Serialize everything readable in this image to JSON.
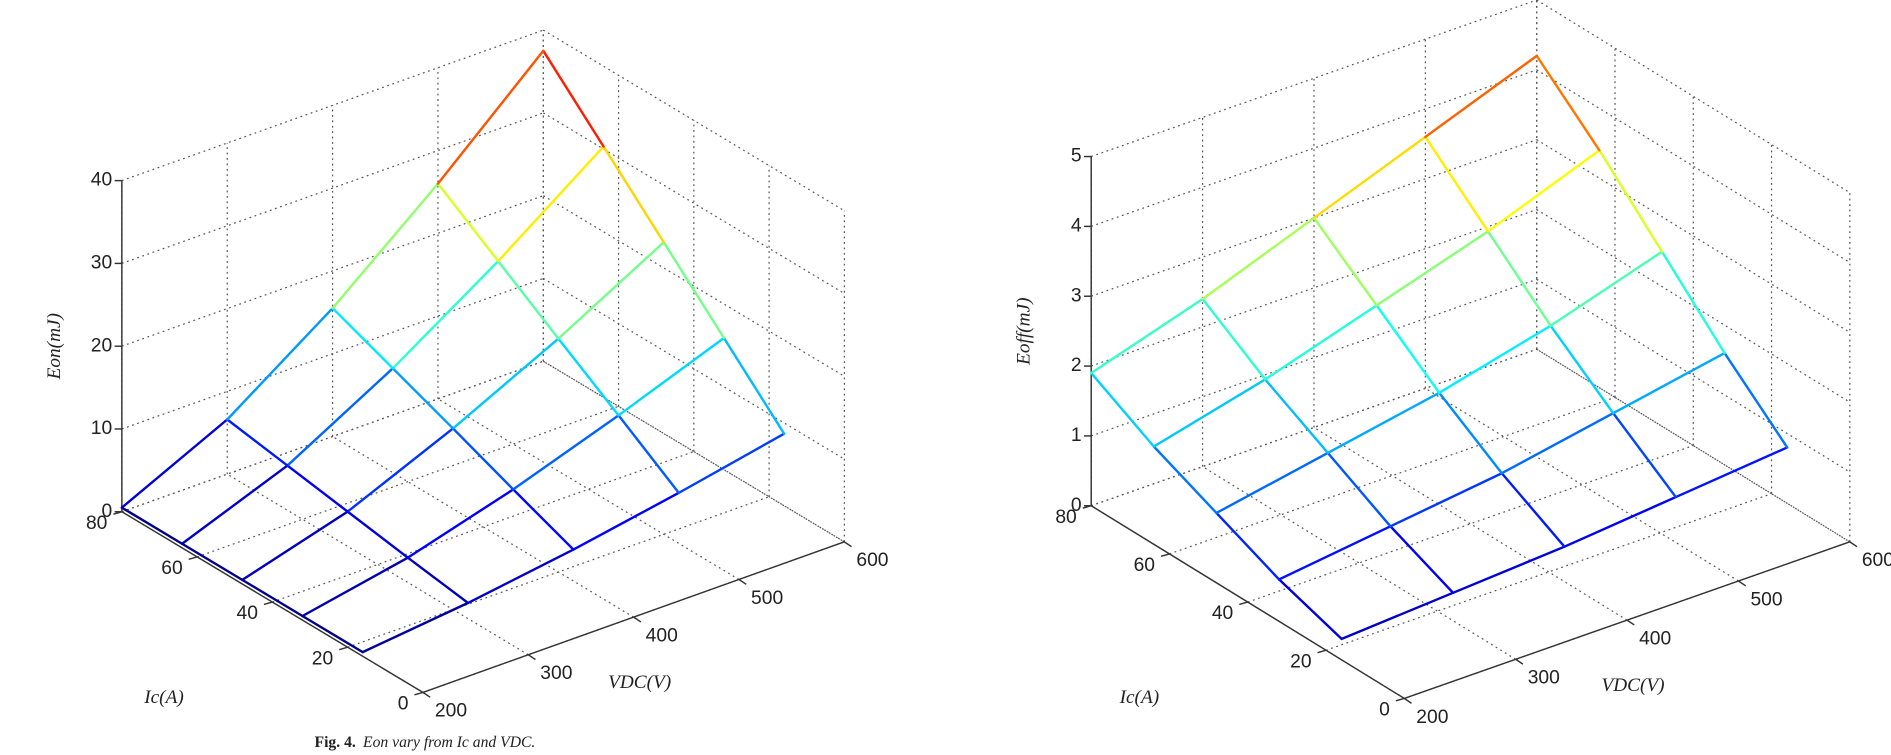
{
  "chart_data": [
    {
      "type": "surface",
      "colormap": "jet",
      "grid": true,
      "xlabel": "VDC(V)",
      "ylabel": "Ic(A)",
      "zlabel": "Eon(mJ)",
      "x": [
        200,
        300,
        400,
        500,
        600
      ],
      "y": [
        16,
        32,
        48,
        64,
        80
      ],
      "z": [
        [
          0.5,
          1.9,
          3.8,
          6.1,
          8.7
        ],
        [
          0.5,
          3.0,
          6.7,
          11.1,
          15.9
        ],
        [
          0.5,
          4.2,
          9.7,
          16.0,
          23.1
        ],
        [
          0.5,
          5.4,
          12.6,
          21.0,
          30.3
        ],
        [
          0.5,
          6.6,
          15.5,
          26.0,
          37.5
        ]
      ],
      "xlim": [
        200,
        600
      ],
      "xticks": [
        200,
        300,
        400,
        500,
        600
      ],
      "ylim": [
        0,
        80
      ],
      "yticks": [
        0,
        20,
        40,
        60,
        80
      ],
      "zlim": [
        0,
        40
      ],
      "zticks": [
        0,
        10,
        20,
        30,
        40
      ]
    },
    {
      "type": "surface",
      "colormap": "jet",
      "grid": true,
      "xlabel": "VDC(V)",
      "ylabel": "Ic(A)",
      "zlabel": "Eoff(mJ)",
      "x": [
        200,
        300,
        400,
        500,
        600
      ],
      "y": [
        16,
        32,
        48,
        64,
        80
      ],
      "z": [
        [
          0.3,
          0.4,
          0.5,
          0.65,
          0.8
        ],
        [
          0.6,
          0.8,
          1.0,
          1.3,
          1.6
        ],
        [
          1.0,
          1.3,
          1.6,
          2.0,
          2.5
        ],
        [
          1.4,
          1.8,
          2.3,
          2.8,
          3.4
        ],
        [
          1.9,
          2.4,
          3.0,
          3.6,
          4.2
        ]
      ],
      "xlim": [
        200,
        600
      ],
      "xticks": [
        200,
        300,
        400,
        500,
        600
      ],
      "ylim": [
        0,
        80
      ],
      "yticks": [
        0,
        20,
        40,
        60,
        80
      ],
      "zlim": [
        0,
        5
      ],
      "zticks": [
        0,
        1,
        2,
        3,
        4,
        5
      ]
    }
  ],
  "caption": {
    "label": "Fig. 4.",
    "text": "Eon vary from Ic and VDC."
  }
}
